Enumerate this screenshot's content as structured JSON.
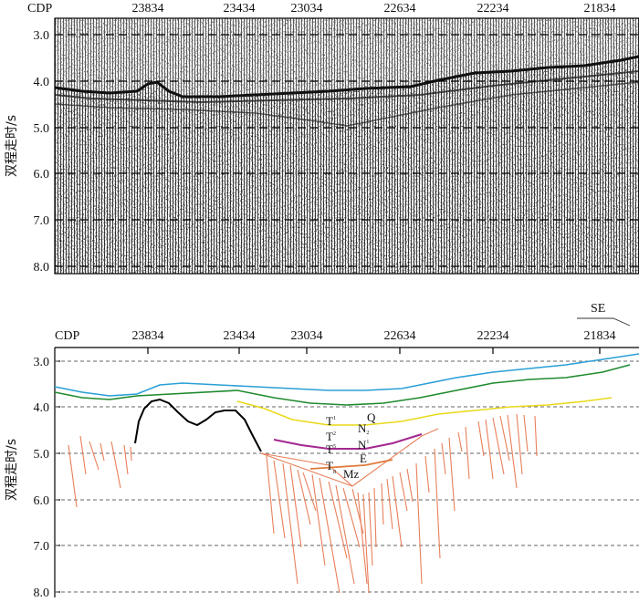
{
  "seismic_panel": {
    "cdp_label": "CDP",
    "cdp_ticks": [
      "23834",
      "23434",
      "23034",
      "22634",
      "22234",
      "21834"
    ],
    "time_ticks": [
      "3.0",
      "4.0",
      "5.0",
      "6.0",
      "7.0",
      "8.0"
    ],
    "y_axis_label": "双程走时/s"
  },
  "interpretation_panel": {
    "cdp_label": "CDP",
    "cdp_ticks": [
      "23834",
      "23434",
      "23034",
      "22634",
      "22234",
      "21834"
    ],
    "time_ticks": [
      "3.0",
      "4.0",
      "5.0",
      "6.0",
      "7.0",
      "8.0"
    ],
    "y_axis_label": "双程走时/s",
    "direction_label": "SE",
    "horizon_labels": {
      "t1": "T",
      "t1_sub": "1",
      "t2": "T",
      "t2_sub": "2",
      "t5": "T",
      "t5_sub": "5",
      "t8": "T",
      "t8_sub": "8"
    },
    "unit_labels": {
      "q": "Q",
      "n2": "N",
      "n2_sub": "2",
      "n1": "N",
      "n1_sub": "1",
      "e": "E",
      "mz": "Mz"
    },
    "colors": {
      "t1_horizon": "#2a9fd6",
      "t2_horizon": "#1f8a2e",
      "t5_horizon": "#e9d91a",
      "e_horizon": "#a3278f",
      "mz_horizon": "#e07b3a",
      "faults": "#e8805a",
      "basement": "#000000"
    }
  }
}
